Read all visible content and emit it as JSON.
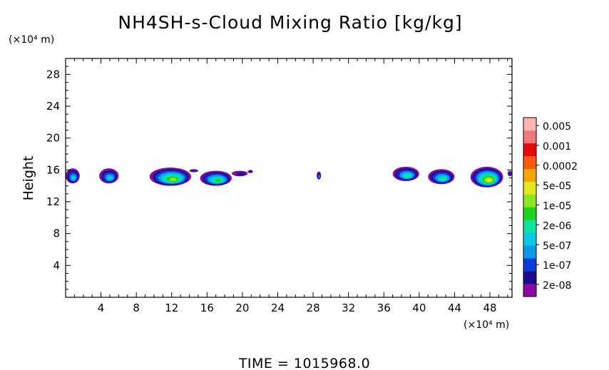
{
  "chart_data": {
    "type": "heatmap",
    "title": "NH4SH-s-Cloud Mixing Ratio [kg/kg]",
    "ylabel": "Height",
    "y_unit": "(×10⁴ m)",
    "x_unit": "(×10⁴ m)",
    "xlim": [
      0,
      50.5
    ],
    "ylim": [
      0,
      30
    ],
    "x_ticks": [
      4,
      8,
      12,
      16,
      20,
      24,
      28,
      32,
      36,
      40,
      44,
      48
    ],
    "y_ticks": [
      4,
      8,
      12,
      16,
      20,
      24,
      28
    ],
    "colorbar": {
      "labels": [
        "0.005",
        "0.001",
        "0.0002",
        "5e-05",
        "1e-05",
        "2e-06",
        "5e-07",
        "1e-07",
        "2e-08"
      ],
      "colors": [
        "#8b0aa5",
        "#1c0a8c",
        "#0a3cd7",
        "#0a9be6",
        "#0ac8e6",
        "#0ae6a0",
        "#1ed21e",
        "#8ce61e",
        "#e6e61e",
        "#f5a50a",
        "#ff5a0a",
        "#e60a0a",
        "#f57878",
        "#ffb4b4"
      ]
    },
    "cloud_patches": [
      {
        "x0": 0.0,
        "x1": 1.6,
        "y0": 14.3,
        "y1": 16.2,
        "level": 4
      },
      {
        "x0": 3.8,
        "x1": 6.0,
        "y0": 14.3,
        "y1": 16.2,
        "level": 4
      },
      {
        "x0": 9.5,
        "x1": 14.2,
        "y0": 14.0,
        "y1": 16.3,
        "level": 7
      },
      {
        "x0": 14.0,
        "x1": 15.0,
        "y0": 15.7,
        "y1": 16.1,
        "level": 2
      },
      {
        "x0": 15.2,
        "x1": 18.8,
        "y0": 14.0,
        "y1": 15.9,
        "level": 6
      },
      {
        "x0": 18.8,
        "x1": 20.6,
        "y0": 15.2,
        "y1": 15.9,
        "level": 1
      },
      {
        "x0": 20.6,
        "x1": 21.2,
        "y0": 15.6,
        "y1": 16.0,
        "level": 1
      },
      {
        "x0": 28.4,
        "x1": 28.9,
        "y0": 14.8,
        "y1": 15.8,
        "level": 3
      },
      {
        "x0": 37.0,
        "x1": 40.0,
        "y0": 14.6,
        "y1": 16.4,
        "level": 5
      },
      {
        "x0": 41.0,
        "x1": 44.0,
        "y0": 14.2,
        "y1": 16.1,
        "level": 5
      },
      {
        "x0": 45.8,
        "x1": 49.5,
        "y0": 13.8,
        "y1": 16.4,
        "level": 8
      },
      {
        "x0": 50.0,
        "x1": 50.5,
        "y0": 15.2,
        "y1": 15.9,
        "level": 2
      }
    ]
  },
  "time_label": "TIME = 1015968.0"
}
